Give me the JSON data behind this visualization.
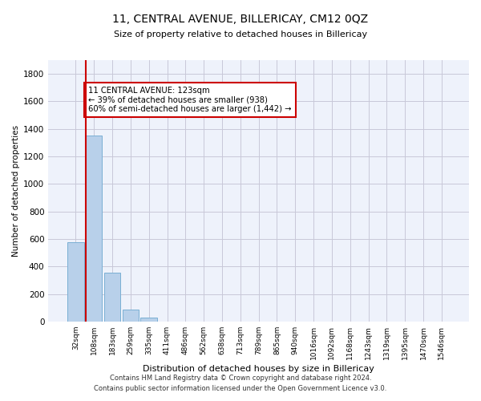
{
  "title": "11, CENTRAL AVENUE, BILLERICAY, CM12 0QZ",
  "subtitle": "Size of property relative to detached houses in Billericay",
  "xlabel": "Distribution of detached houses by size in Billericay",
  "ylabel": "Number of detached properties",
  "bar_color": "#b8d0ea",
  "bar_edge_color": "#7aafd4",
  "categories": [
    "32sqm",
    "108sqm",
    "183sqm",
    "259sqm",
    "335sqm",
    "411sqm",
    "486sqm",
    "562sqm",
    "638sqm",
    "713sqm",
    "789sqm",
    "865sqm",
    "940sqm",
    "1016sqm",
    "1092sqm",
    "1168sqm",
    "1243sqm",
    "1319sqm",
    "1395sqm",
    "1470sqm",
    "1546sqm"
  ],
  "values": [
    580,
    1355,
    355,
    90,
    30,
    0,
    0,
    0,
    0,
    0,
    0,
    0,
    0,
    0,
    0,
    0,
    0,
    0,
    0,
    0,
    0
  ],
  "ylim": [
    0,
    1900
  ],
  "yticks": [
    0,
    200,
    400,
    600,
    800,
    1000,
    1200,
    1400,
    1600,
    1800
  ],
  "property_line_color": "#cc0000",
  "annotation_box_text": "11 CENTRAL AVENUE: 123sqm\n← 39% of detached houses are smaller (938)\n60% of semi-detached houses are larger (1,442) →",
  "annotation_box_color": "#cc0000",
  "annotation_box_fill": "#ffffff",
  "footer_line1": "Contains HM Land Registry data © Crown copyright and database right 2024.",
  "footer_line2": "Contains public sector information licensed under the Open Government Licence v3.0.",
  "background_color": "#eef2fb",
  "grid_color": "#c8c8d8"
}
